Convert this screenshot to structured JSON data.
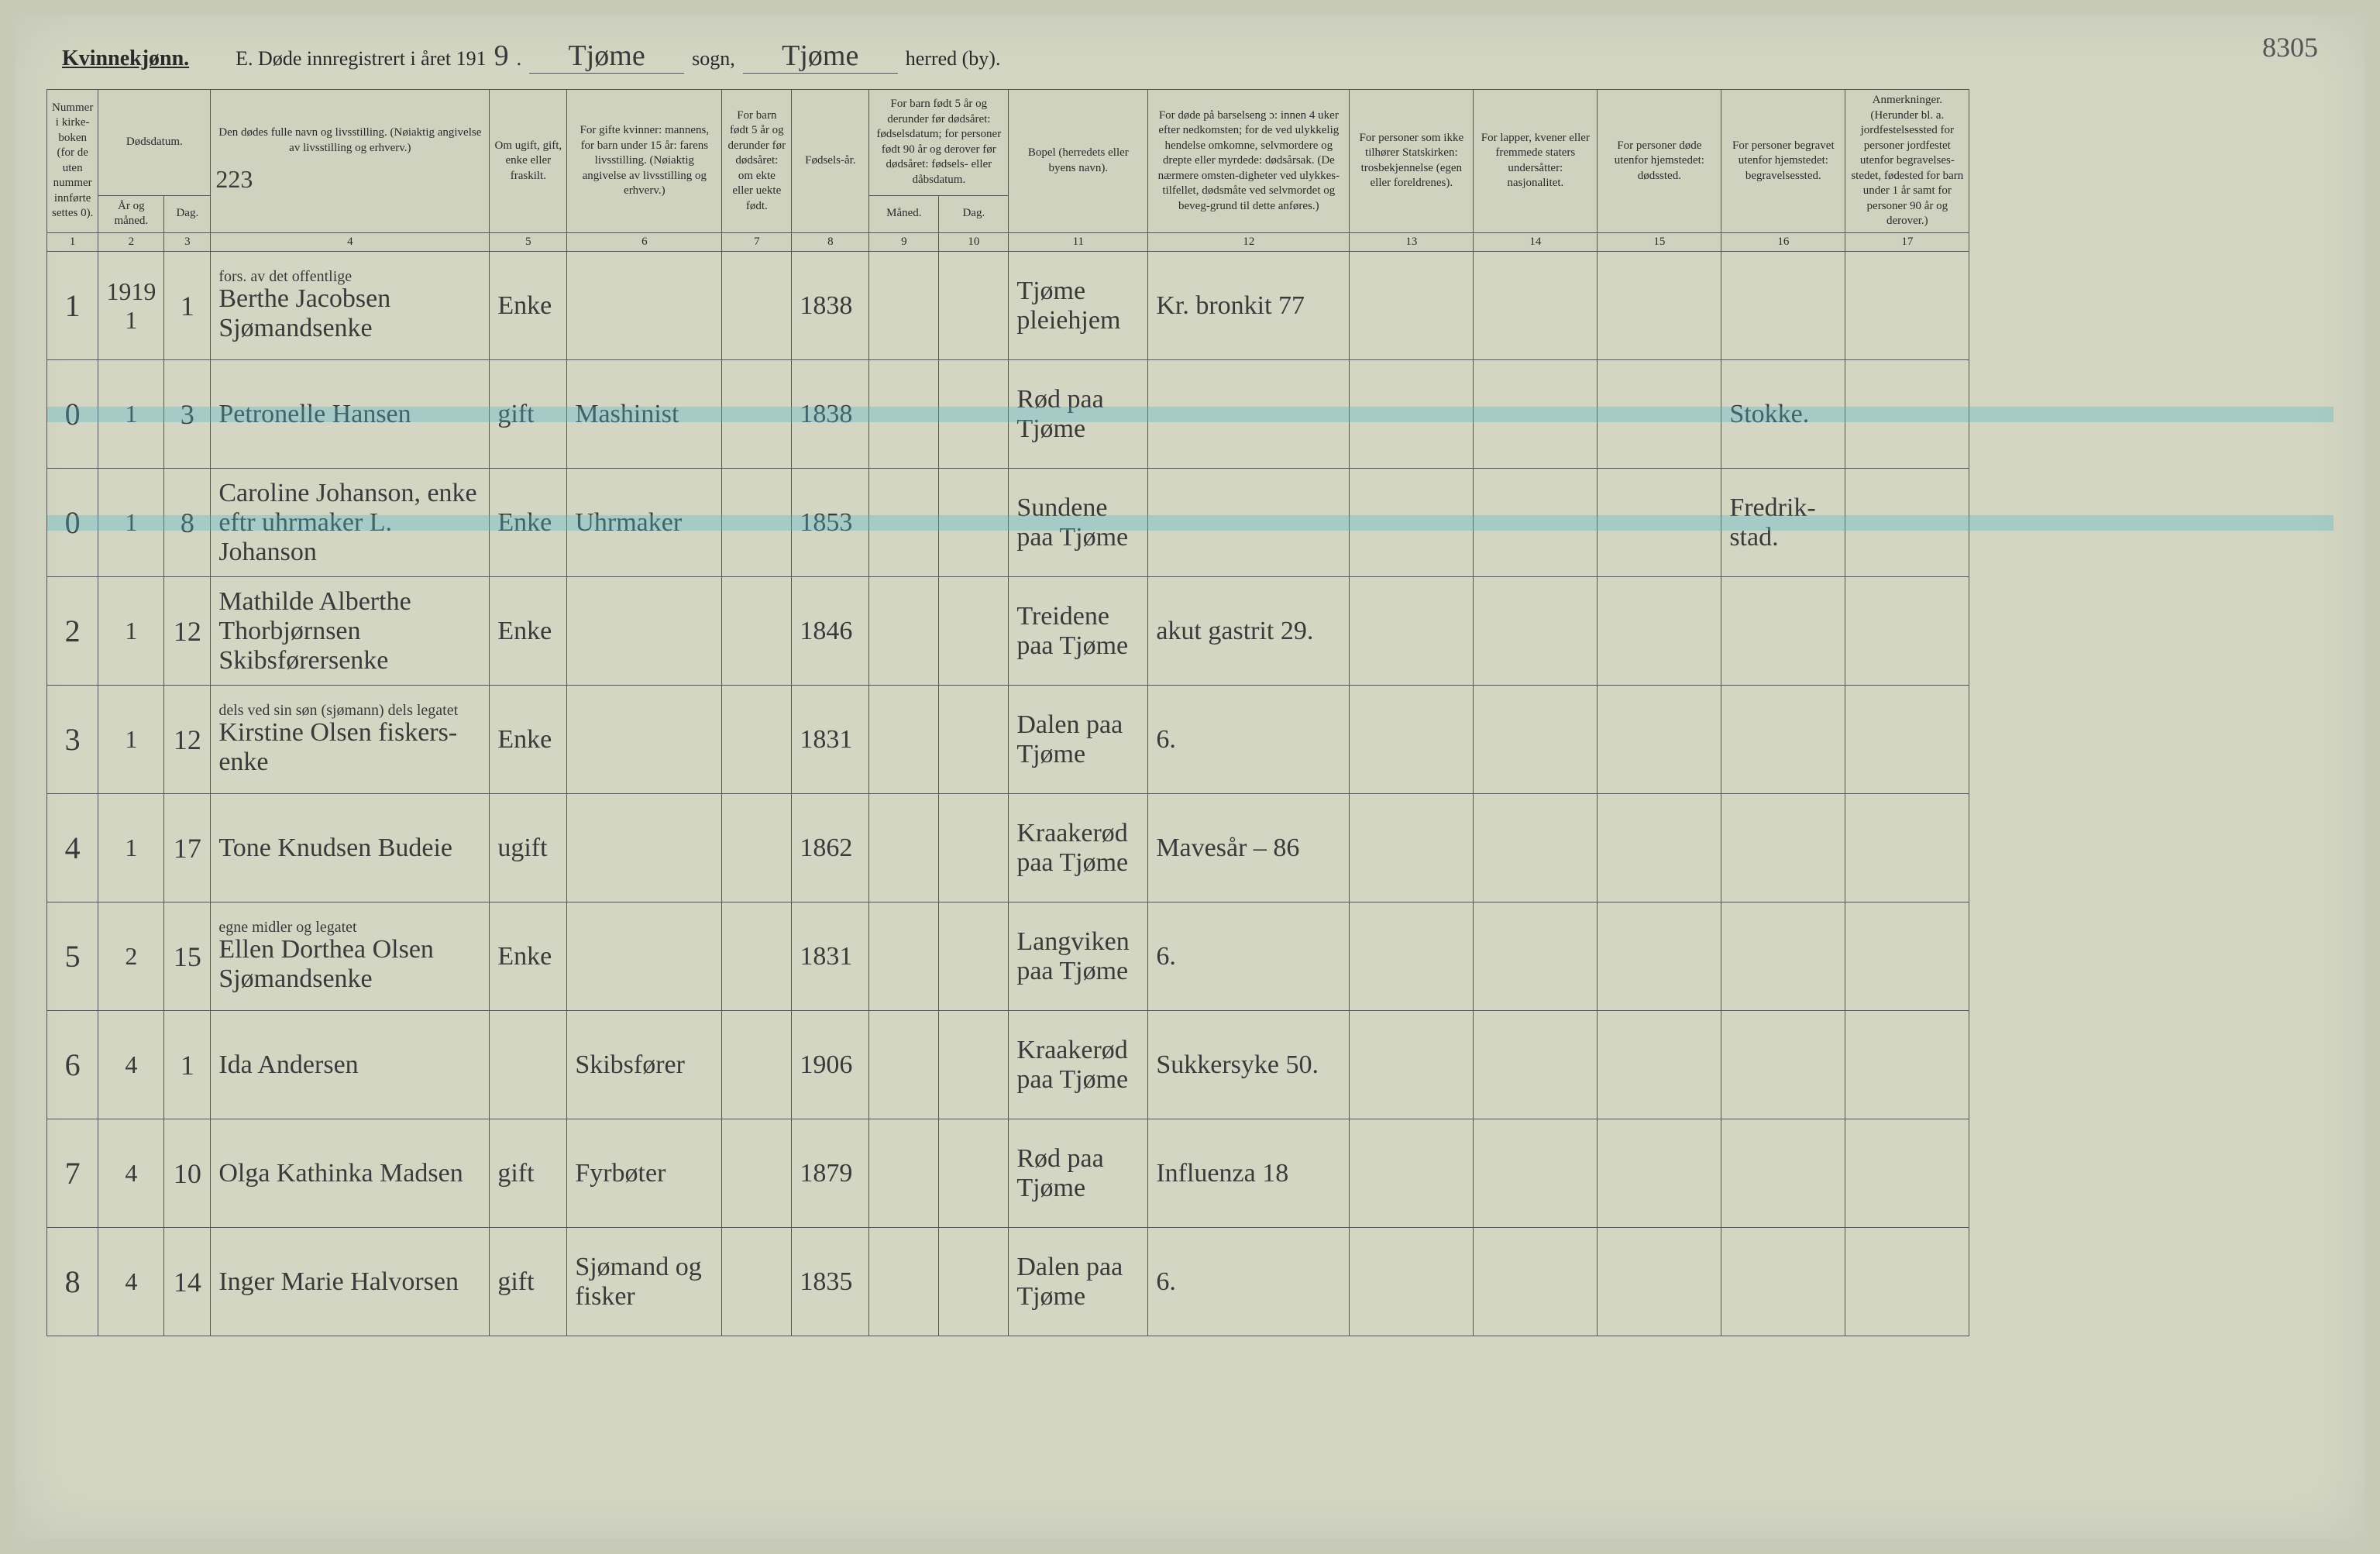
{
  "page_number": "8305",
  "header": {
    "gender": "Kvinnekjønn.",
    "title_prefix": "E. Døde innregistrert i året 191",
    "year_suffix": "9",
    "period": ".",
    "parish_value": "Tjøme",
    "parish_label": "sogn,",
    "district_value": "Tjøme",
    "district_label": "herred (by)."
  },
  "columns": {
    "c1": "Nummer i kirke-boken (for de uten nummer innførte settes 0).",
    "c2": "Dødsdatum.",
    "c2a": "År og måned.",
    "c2b": "Dag.",
    "c4": "Den dødes fulle navn og livsstilling. (Nøiaktig angivelse av livsstilling og erhverv.)",
    "c4_note": "223",
    "c5": "Om ugift, gift, enke eller fraskilt.",
    "c6": "For gifte kvinner: mannens, for barn under 15 år: farens livsstilling. (Nøiaktig angivelse av livsstilling og erhverv.)",
    "c7": "For barn født 5 år og derunder før dødsåret: om ekte eller uekte født.",
    "c8": "Fødsels-år.",
    "c9_10": "For barn født 5 år og derunder før dødsåret: fødselsdatum; for personer født 90 år og derover før dødsåret: fødsels- eller dåbsdatum.",
    "c9": "Måned.",
    "c10": "Dag.",
    "c11": "Bopel (herredets eller byens navn).",
    "c12": "For døde på barselseng ɔ: innen 4 uker efter nedkomsten; for de ved ulykkelig hendelse omkomne, selvmordere og drepte eller myrdede: dødsårsak. (De nærmere omsten-digheter ved ulykkes-tilfellet, dødsmåte ved selvmordet og beveg-grund til dette anføres.)",
    "c13": "For personer som ikke tilhører Statskirken: trosbekjennelse (egen eller foreldrenes).",
    "c14": "For lapper, kvener eller fremmede staters undersåtter: nasjonalitet.",
    "c15": "For personer døde utenfor hjemstedet: dødssted.",
    "c16": "For personer begravet utenfor hjemstedet: begravelsessted.",
    "c17": "Anmerkninger. (Herunder bl. a. jordfestelsessted for personer jordfestet utenfor begravelses-stedet, fødested for barn under 1 år samt for personer 90 år og derover.)"
  },
  "colnums": [
    "1",
    "2",
    "3",
    "4",
    "5",
    "6",
    "7",
    "8",
    "9",
    "10",
    "11",
    "12",
    "13",
    "14",
    "15",
    "16",
    "17"
  ],
  "rows": [
    {
      "n": "1",
      "ym": "1919 1",
      "d": "1",
      "name": "Berthe Jacobsen Sjømandsenke",
      "name_note": "fors. av det offentlige",
      "status": "Enke",
      "spouse": "",
      "c7": "",
      "birth": "1838",
      "c9": "",
      "c10": "",
      "place": "Tjøme pleiehjem",
      "cause": "Kr. bronkit 77",
      "c13": "",
      "c14": "",
      "c15": "",
      "c16": "",
      "c17": "",
      "highlight": false
    },
    {
      "n": "0",
      "ym": "1",
      "d": "3",
      "name": "Petronelle Hansen",
      "status": "gift",
      "spouse": "Mashinist",
      "c7": "",
      "birth": "1838",
      "c9": "",
      "c10": "",
      "place": "Rød paa Tjøme",
      "cause": "",
      "c13": "",
      "c14": "",
      "c15": "",
      "c16": "Stokke.",
      "c17": "",
      "highlight": true
    },
    {
      "n": "0",
      "ym": "1",
      "d": "8",
      "name": "Caroline Johanson, enke eftr uhrmaker L. Johanson",
      "status": "Enke",
      "spouse": "Uhrmaker",
      "c7": "",
      "birth": "1853",
      "c9": "",
      "c10": "",
      "place": "Sundene paa Tjøme",
      "cause": "",
      "c13": "",
      "c14": "",
      "c15": "",
      "c16": "Fredrik-stad.",
      "c17": "",
      "highlight": true
    },
    {
      "n": "2",
      "ym": "1",
      "d": "12",
      "name": "Mathilde Alberthe Thorbjørnsen Skibsførersenke",
      "status": "Enke",
      "spouse": "",
      "c7": "",
      "birth": "1846",
      "c9": "",
      "c10": "",
      "place": "Treidene paa Tjøme",
      "cause": "akut gastrit 29.",
      "c13": "",
      "c14": "",
      "c15": "",
      "c16": "",
      "c17": "",
      "highlight": false
    },
    {
      "n": "3",
      "ym": "1",
      "d": "12",
      "name": "Kirstine Olsen fiskers-enke",
      "name_note": "dels ved sin søn (sjømann) dels legatet",
      "status": "Enke",
      "spouse": "",
      "c7": "",
      "birth": "1831",
      "c9": "",
      "c10": "",
      "place": "Dalen paa Tjøme",
      "cause": "6.",
      "c13": "",
      "c14": "",
      "c15": "",
      "c16": "",
      "c17": "",
      "highlight": false
    },
    {
      "n": "4",
      "ym": "1",
      "d": "17",
      "name": "Tone Knudsen Budeie",
      "status": "ugift",
      "spouse": "",
      "c7": "",
      "birth": "1862",
      "c9": "",
      "c10": "",
      "place": "Kraakerød paa Tjøme",
      "cause": "Mavesår – 86",
      "c13": "",
      "c14": "",
      "c15": "",
      "c16": "",
      "c17": "",
      "highlight": false
    },
    {
      "n": "5",
      "ym": "2",
      "d": "15",
      "name": "Ellen Dorthea Olsen Sjømandsenke",
      "name_note": "egne midler og legatet",
      "status": "Enke",
      "spouse": "",
      "c7": "",
      "birth": "1831",
      "c9": "",
      "c10": "",
      "place": "Langviken paa Tjøme",
      "cause": "6.",
      "c13": "",
      "c14": "",
      "c15": "",
      "c16": "",
      "c17": "",
      "highlight": false
    },
    {
      "n": "6",
      "ym": "4",
      "d": "1",
      "name": "Ida Andersen",
      "status": "",
      "spouse": "Skibsfører",
      "c7": "",
      "birth": "1906",
      "c9": "",
      "c10": "",
      "place": "Kraakerød paa Tjøme",
      "cause": "Sukkersyke 50.",
      "c13": "",
      "c14": "",
      "c15": "",
      "c16": "",
      "c17": "",
      "highlight": false
    },
    {
      "n": "7",
      "ym": "4",
      "d": "10",
      "name": "Olga Kathinka Madsen",
      "status": "gift",
      "spouse": "Fyrbøter",
      "c7": "",
      "birth": "1879",
      "c9": "",
      "c10": "",
      "place": "Rød paa Tjøme",
      "cause": "Influenza 18",
      "c13": "",
      "c14": "",
      "c15": "",
      "c16": "",
      "c17": "",
      "highlight": false
    },
    {
      "n": "8",
      "ym": "4",
      "d": "14",
      "name": "Inger Marie Halvorsen",
      "status": "gift",
      "spouse": "Sjømand og fisker",
      "c7": "",
      "birth": "1835",
      "c9": "",
      "c10": "",
      "place": "Dalen paa Tjøme",
      "cause": "6.",
      "c13": "",
      "c14": "",
      "c15": "",
      "c16": "",
      "c17": "",
      "highlight": false
    }
  ]
}
